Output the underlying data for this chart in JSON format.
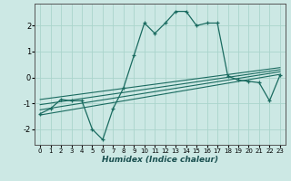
{
  "xlabel": "Humidex (Indice chaleur)",
  "ylabel": "",
  "background_color": "#cce8e4",
  "grid_color": "#aad4cc",
  "line_color": "#1a6b60",
  "xlim": [
    -0.5,
    23.5
  ],
  "ylim": [
    -2.6,
    2.85
  ],
  "yticks": [
    -2,
    -1,
    0,
    1,
    2
  ],
  "xticks": [
    0,
    1,
    2,
    3,
    4,
    5,
    6,
    7,
    8,
    9,
    10,
    11,
    12,
    13,
    14,
    15,
    16,
    17,
    18,
    19,
    20,
    21,
    22,
    23
  ],
  "main_series": {
    "x": [
      0,
      1,
      2,
      3,
      4,
      5,
      6,
      7,
      8,
      9,
      10,
      11,
      12,
      13,
      14,
      15,
      16,
      17,
      18,
      19,
      20,
      21,
      22,
      23
    ],
    "y": [
      -1.4,
      -1.2,
      -0.85,
      -0.9,
      -0.9,
      -2.0,
      -2.4,
      -1.2,
      -0.4,
      0.85,
      2.1,
      1.7,
      2.1,
      2.55,
      2.55,
      2.0,
      2.1,
      2.1,
      0.05,
      -0.1,
      -0.15,
      -0.2,
      -0.9,
      0.08
    ]
  },
  "linear_lines": [
    {
      "x0": 0,
      "y0": -1.45,
      "x1": 23,
      "y1": 0.12
    },
    {
      "x0": 0,
      "y0": -1.25,
      "x1": 23,
      "y1": 0.22
    },
    {
      "x0": 0,
      "y0": -1.05,
      "x1": 23,
      "y1": 0.3
    },
    {
      "x0": 0,
      "y0": -0.85,
      "x1": 23,
      "y1": 0.38
    }
  ]
}
